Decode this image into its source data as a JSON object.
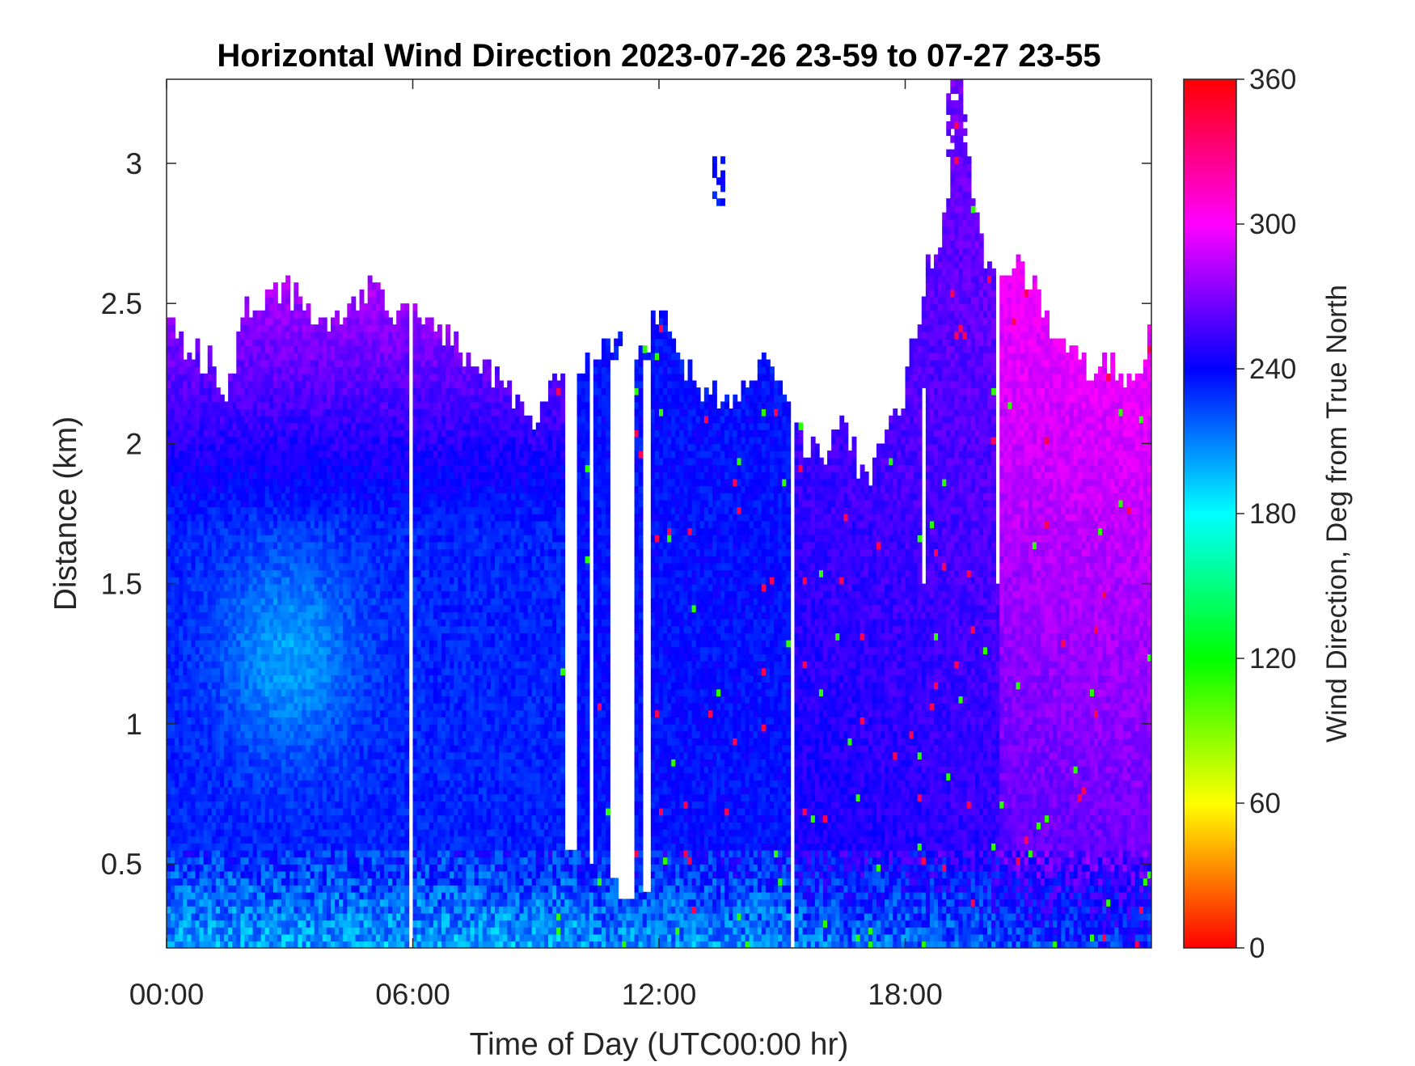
{
  "chart_data": {
    "type": "heatmap",
    "title": "Horizontal Wind Direction 2023-07-26 23-59 to 07-27 23-55",
    "xlabel": "Time of Day (UTC00:00 hr)",
    "ylabel": "Distance (km)",
    "xlim": [
      0,
      24
    ],
    "ylim": [
      0.2,
      3.3
    ],
    "x_ticks": [
      {
        "value": 0,
        "label": "00:00"
      },
      {
        "value": 6,
        "label": "06:00"
      },
      {
        "value": 12,
        "label": "12:00"
      },
      {
        "value": 18,
        "label": "18:00"
      }
    ],
    "y_ticks": [
      {
        "value": 0.5,
        "label": "0.5"
      },
      {
        "value": 1,
        "label": "1"
      },
      {
        "value": 1.5,
        "label": "1.5"
      },
      {
        "value": 2,
        "label": "2"
      },
      {
        "value": 2.5,
        "label": "2.5"
      },
      {
        "value": 3,
        "label": "3"
      }
    ],
    "colorbar": {
      "label": "Wind Direction, Deg from True North",
      "range": [
        0,
        360
      ],
      "colormap": "hsv",
      "ticks": [
        {
          "value": 0,
          "label": "0"
        },
        {
          "value": 60,
          "label": "60"
        },
        {
          "value": 120,
          "label": "120"
        },
        {
          "value": 180,
          "label": "180"
        },
        {
          "value": 240,
          "label": "240"
        },
        {
          "value": 300,
          "label": "300"
        },
        {
          "value": 360,
          "label": "360"
        }
      ]
    },
    "data_top_profile": [
      {
        "x": 0.0,
        "y": 2.45
      },
      {
        "x": 0.5,
        "y": 2.35
      },
      {
        "x": 1.0,
        "y": 2.3
      },
      {
        "x": 1.5,
        "y": 2.2
      },
      {
        "x": 2.0,
        "y": 2.5
      },
      {
        "x": 2.5,
        "y": 2.5
      },
      {
        "x": 3.0,
        "y": 2.55
      },
      {
        "x": 3.5,
        "y": 2.45
      },
      {
        "x": 4.0,
        "y": 2.45
      },
      {
        "x": 4.5,
        "y": 2.45
      },
      {
        "x": 5.0,
        "y": 2.6
      },
      {
        "x": 5.5,
        "y": 2.45
      },
      {
        "x": 6.0,
        "y": 2.45
      },
      {
        "x": 6.5,
        "y": 2.45
      },
      {
        "x": 7.0,
        "y": 2.35
      },
      {
        "x": 7.5,
        "y": 2.3
      },
      {
        "x": 8.0,
        "y": 2.25
      },
      {
        "x": 8.5,
        "y": 2.15
      },
      {
        "x": 9.0,
        "y": 2.1
      },
      {
        "x": 9.4,
        "y": 2.2
      },
      {
        "x": 10.2,
        "y": 2.3
      },
      {
        "x": 11.0,
        "y": 2.35
      },
      {
        "x": 11.6,
        "y": 2.3
      },
      {
        "x": 12.0,
        "y": 2.5
      },
      {
        "x": 12.5,
        "y": 2.3
      },
      {
        "x": 13.0,
        "y": 2.2
      },
      {
        "x": 13.5,
        "y": 2.15
      },
      {
        "x": 14.0,
        "y": 2.15
      },
      {
        "x": 14.5,
        "y": 2.3
      },
      {
        "x": 15.0,
        "y": 2.2
      },
      {
        "x": 15.5,
        "y": 2.0
      },
      {
        "x": 16.0,
        "y": 1.95
      },
      {
        "x": 16.5,
        "y": 2.1
      },
      {
        "x": 17.0,
        "y": 1.85
      },
      {
        "x": 17.5,
        "y": 2.0
      },
      {
        "x": 18.0,
        "y": 2.2
      },
      {
        "x": 18.5,
        "y": 2.6
      },
      {
        "x": 19.0,
        "y": 2.8
      },
      {
        "x": 19.3,
        "y": 3.3
      },
      {
        "x": 19.6,
        "y": 2.9
      },
      {
        "x": 20.0,
        "y": 2.6
      },
      {
        "x": 20.5,
        "y": 2.65
      },
      {
        "x": 21.0,
        "y": 2.6
      },
      {
        "x": 21.5,
        "y": 2.4
      },
      {
        "x": 22.0,
        "y": 2.35
      },
      {
        "x": 22.5,
        "y": 2.25
      },
      {
        "x": 23.0,
        "y": 2.3
      },
      {
        "x": 23.5,
        "y": 2.2
      },
      {
        "x": 24.0,
        "y": 2.4
      }
    ],
    "gaps": [
      {
        "x_start": 5.88,
        "x_end": 5.95,
        "y_min": 0.2,
        "y_max": 2.45
      },
      {
        "x_start": 9.65,
        "x_end": 10.0,
        "y_min": 0.55,
        "y_max": 2.3
      },
      {
        "x_start": 10.25,
        "x_end": 10.4,
        "y_min": 0.5,
        "y_max": 2.3
      },
      {
        "x_start": 10.75,
        "x_end": 11.0,
        "y_min": 0.45,
        "y_max": 2.3
      },
      {
        "x_start": 11.0,
        "x_end": 11.35,
        "y_min": 0.38,
        "y_max": 2.35
      },
      {
        "x_start": 11.6,
        "x_end": 11.75,
        "y_min": 0.4,
        "y_max": 2.3
      },
      {
        "x_start": 15.2,
        "x_end": 15.3,
        "y_min": 0.2,
        "y_max": 2.3
      },
      {
        "x_start": 18.35,
        "x_end": 18.45,
        "y_min": 1.5,
        "y_max": 2.2
      },
      {
        "x_start": 20.25,
        "x_end": 20.32,
        "y_min": 1.5,
        "y_max": 2.6
      }
    ],
    "isolated_patches": [
      {
        "x_start": 13.25,
        "x_end": 13.6,
        "y_min": 2.85,
        "y_max": 3.05
      },
      {
        "x_start": 19.0,
        "x_end": 19.5,
        "y_min": 3.0,
        "y_max": 3.3
      }
    ]
  }
}
